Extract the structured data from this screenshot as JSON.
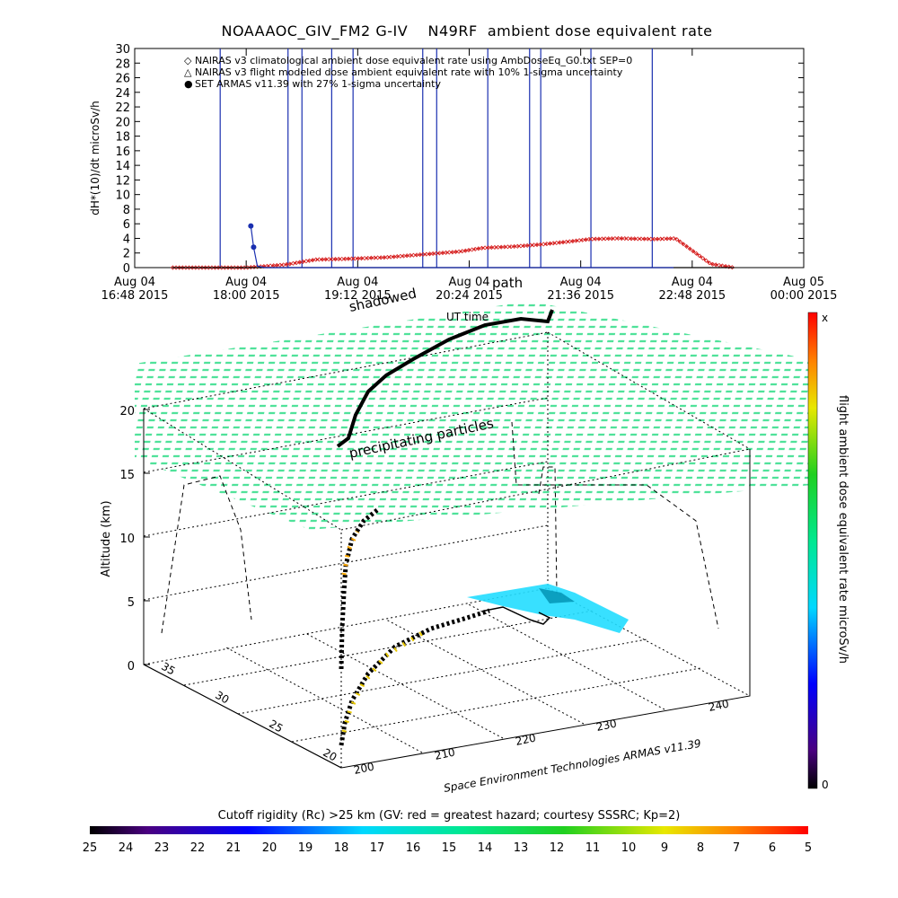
{
  "chart_data": [
    {
      "type": "line",
      "title": "NOAAAOC_GIV_FM2 G-IV    N49RF  ambient dose equivalent rate",
      "ylabel": "dH*(10)/dt microSv/h",
      "ylim": [
        0,
        30
      ],
      "yticks": [
        "0",
        "2",
        "4",
        "6",
        "8",
        "10",
        "12",
        "14",
        "16",
        "18",
        "20",
        "22",
        "24",
        "26",
        "28",
        "30"
      ],
      "xticks": [
        {
          "top": "Aug 04",
          "bottom": "16:48 2015"
        },
        {
          "top": "Aug 04",
          "bottom": "18:00 2015"
        },
        {
          "top": "Aug 04",
          "bottom": "19:12 2015"
        },
        {
          "top": "Aug 04",
          "bottom": "20:24 2015"
        },
        {
          "top": "Aug 04",
          "bottom": "21:36 2015"
        },
        {
          "top": "Aug 04",
          "bottom": "22:48 2015"
        },
        {
          "top": "Aug 05",
          "bottom": "00:00 2015"
        }
      ],
      "legend": {
        "placement": "top-left",
        "entries": [
          {
            "symbol": "◇",
            "color": "#d62020",
            "label": "NAIRAS v3 climatological ambient dose equivalent rate using AmbDoseEq_G0.txt SEP=0"
          },
          {
            "symbol": "△",
            "color": "#000000",
            "label": "NAIRAS v3 flight modeled dose ambient equivalent rate with 10% 1-sigma uncertainty"
          },
          {
            "symbol": "●",
            "color": "#1a2fb0",
            "label": "SET ARMAS v11.39 with 27% 1-sigma uncertainty"
          }
        ]
      },
      "series": [
        {
          "name": "NAIRAS v3 climatological ambient dose equivalent rate using AmbDoseEq_G0.txt SEP=0",
          "color": "#d62020",
          "x_hours": [
            17.21,
            18.0,
            18.42,
            18.75,
            19.1,
            19.5,
            19.9,
            20.3,
            20.55,
            20.9,
            21.2,
            21.5,
            21.7,
            22.0,
            22.4,
            22.62,
            22.75,
            23.0,
            23.25
          ],
          "y": [
            0,
            0,
            0.4,
            1.1,
            1.2,
            1.4,
            1.8,
            2.2,
            2.7,
            2.9,
            3.2,
            3.6,
            3.9,
            4.0,
            3.9,
            4.0,
            2.8,
            0.5,
            0
          ]
        },
        {
          "name": "NAIRAS v3 flight modeled dose ambient equivalent rate with 10% 1-sigma uncertainty",
          "color": "#000000",
          "x_hours": [
            17.21,
            23.25
          ],
          "y": [
            0,
            0
          ]
        },
        {
          "name": "SET ARMAS v11.39 with 27% 1-sigma uncertainty",
          "color": "#1a2fb0",
          "x_hours": [
            18.05,
            18.08,
            18.12,
            18.2,
            22.6
          ],
          "y": [
            5.7,
            2.8,
            0.2,
            0,
            0
          ],
          "spikes_x_hours": [
            17.72,
            18.45,
            18.6,
            18.92,
            19.15,
            19.9,
            20.05,
            20.6,
            21.05,
            21.17,
            21.71,
            22.37
          ]
        }
      ]
    },
    {
      "type": "scatter",
      "title": "",
      "zlabel": "Altitude (km)",
      "zticks": [
        "0",
        "5",
        "10",
        "15",
        "20"
      ],
      "lat_ticks": [
        "20",
        "25",
        "30",
        "35"
      ],
      "lon_ticks": [
        "200",
        "210",
        "220",
        "230",
        "240"
      ],
      "colorbar": {
        "label": "flight ambient dose equivalent rate microSv/h",
        "max_label": "x",
        "min_label": "0"
      },
      "annotations": [
        "path",
        "shadowed",
        "UT time",
        "precipitating particles"
      ],
      "credit": "Space Environment Technologies ARMAS v11.39"
    }
  ],
  "bottom_colorbar": {
    "label": "Cutoff rigidity (Rc) >25 km (GV: red = greatest hazard; courtesy SSSRC; Kp=2)",
    "ticks": [
      "25",
      "24",
      "23",
      "22",
      "21",
      "20",
      "19",
      "18",
      "17",
      "16",
      "15",
      "14",
      "13",
      "12",
      "11",
      "10",
      "9",
      "8",
      "7",
      "6",
      "5"
    ]
  }
}
